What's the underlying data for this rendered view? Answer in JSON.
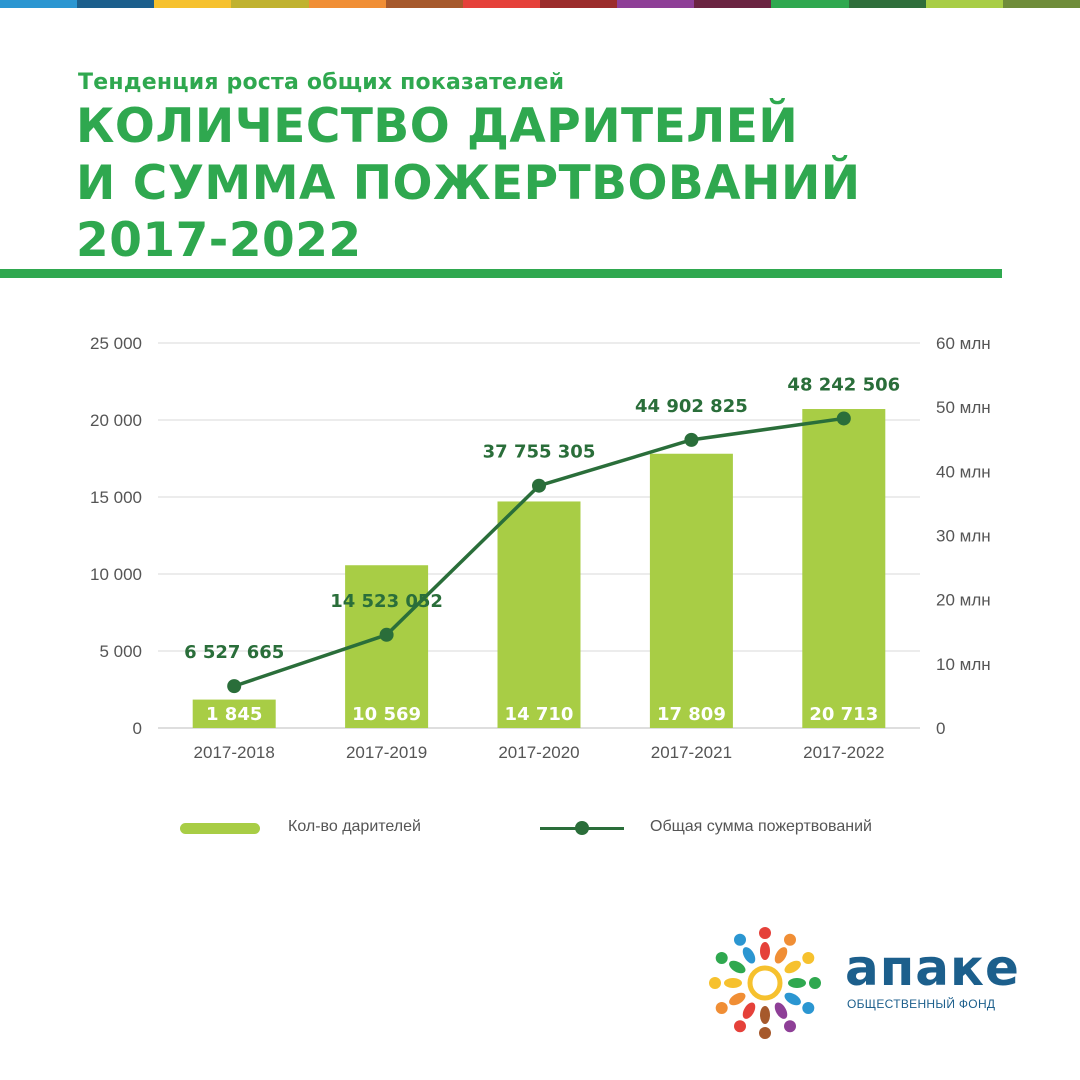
{
  "topbar_colors": [
    "#2b96d1",
    "#1c5f8c",
    "#f6c12e",
    "#c0b230",
    "#f08e35",
    "#a6592c",
    "#e5413a",
    "#9b2c2b",
    "#8e3f97",
    "#6b2542",
    "#2fa84f",
    "#2f6e3b",
    "#a8cd45",
    "#6f8c3a"
  ],
  "header": {
    "subtitle": "Тенденция роста общих показателей",
    "title_lines": [
      "КОЛИЧЕСТВО ДАРИТЕЛЕЙ",
      "И СУММА ПОЖЕРТВОВАНИЙ",
      "2017-2022"
    ]
  },
  "chart_data": {
    "type": "bar",
    "categories": [
      "2017-2018",
      "2017-2019",
      "2017-2020",
      "2017-2021",
      "2017-2022"
    ],
    "series": [
      {
        "name": "Кол-во дарителей",
        "type": "bar",
        "axis": "left",
        "color": "#a8cd45",
        "values": [
          1845,
          10569,
          14710,
          17809,
          20713
        ],
        "value_labels": [
          "1 845",
          "10 569",
          "14 710",
          "17 809",
          "20 713"
        ]
      },
      {
        "name": "Общая сумма пожертвований",
        "type": "line",
        "axis": "right",
        "color": "#2a6e3a",
        "values": [
          6527665,
          14523052,
          37755305,
          44902825,
          48242506
        ],
        "value_labels": [
          "6 527 665",
          "14 523 052",
          "37 755 305",
          "44 902 825",
          "48 242 506"
        ]
      }
    ],
    "y_left": {
      "ylim": [
        0,
        25000
      ],
      "ticks": [
        0,
        5000,
        10000,
        15000,
        20000,
        25000
      ],
      "tick_labels": [
        "0",
        "5 000",
        "10 000",
        "15 000",
        "20 000",
        "25 000"
      ]
    },
    "y_right": {
      "ylim": [
        0,
        60000000
      ],
      "ticks": [
        0,
        10000000,
        20000000,
        30000000,
        40000000,
        50000000,
        60000000
      ],
      "tick_labels": [
        "0",
        "10 млн",
        "20 млн",
        "30 млн",
        "40 млн",
        "50 млн",
        "60 млн"
      ]
    },
    "grid": true,
    "legend": "bottom"
  },
  "logo": {
    "word": "апаке",
    "sub": "ОБЩЕСТВЕННЫЙ ФОНД",
    "colors": [
      "#e5413a",
      "#f08e35",
      "#f6c12e",
      "#2fa84f",
      "#2b96d1",
      "#8e3f97",
      "#a6592c"
    ]
  }
}
